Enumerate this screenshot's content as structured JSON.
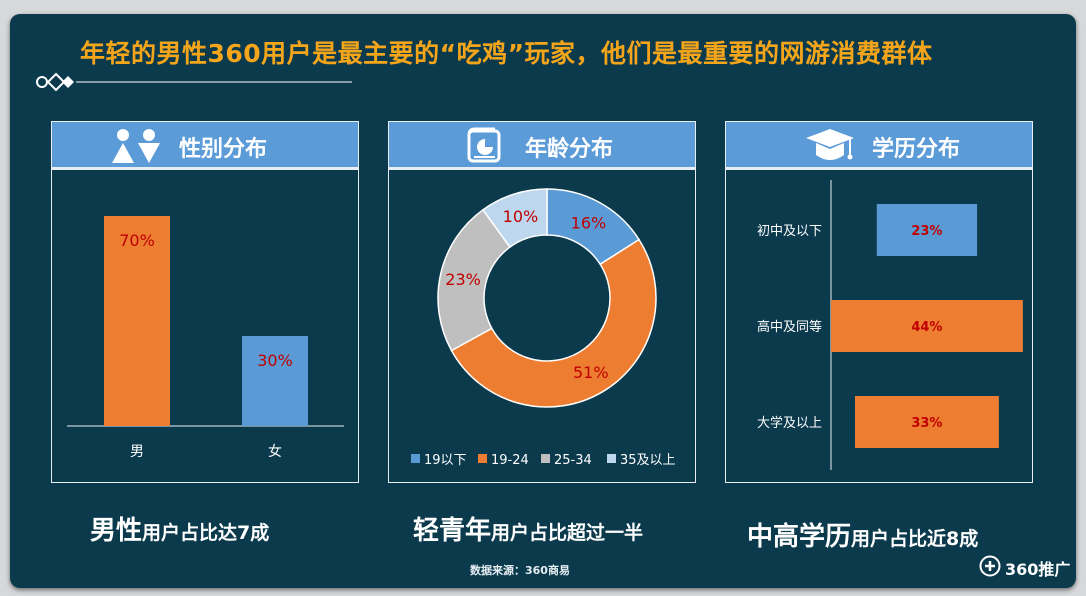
{
  "headline": "年轻的男性360用户是最主要的“吃鸡”玩家，他们是最重要的网游消费群体",
  "panels": {
    "gender": {
      "title": "性别分布",
      "icon": "male-female-icon"
    },
    "age": {
      "title": "年龄分布",
      "icon": "report-chart-icon"
    },
    "education": {
      "title": "学历分布",
      "icon": "graduation-cap-icon"
    }
  },
  "summaries": {
    "gender": {
      "big": "男性",
      "small": "用户占比达7成"
    },
    "age": {
      "big": "轻青年",
      "small": "用户占比超过一半"
    },
    "education": {
      "big": "中高学历",
      "small": "用户占比近8成"
    }
  },
  "source": "数据来源：360商易",
  "brand": {
    "text": "360推广",
    "icon": "plus-circle-icon"
  },
  "colors": {
    "background": "#0b3a4d",
    "header": "#5a9bd8",
    "orange": "#ed7d31",
    "blue": "#5b9bd5",
    "gray": "#bfbfbf",
    "lightblue": "#bdd7ee",
    "headline": "#f5a51a",
    "label_red": "#c00000"
  },
  "chart_data": [
    {
      "type": "bar",
      "title": "性别分布",
      "categories": [
        "男",
        "女"
      ],
      "values": [
        70,
        30
      ],
      "labels": [
        "70%",
        "30%"
      ],
      "colors": [
        "#ed7d31",
        "#5b9bd5"
      ],
      "ylim": [
        0,
        100
      ],
      "grid": false
    },
    {
      "type": "pie",
      "title": "年龄分布",
      "categories": [
        "19以下",
        "19-24",
        "25-34",
        "35及以上"
      ],
      "values": [
        16,
        51,
        23,
        10
      ],
      "labels": [
        "16%",
        "51%",
        "23%",
        "10%"
      ],
      "colors": [
        "#5b9bd5",
        "#ed7d31",
        "#bfbfbf",
        "#bdd7ee"
      ],
      "donut": true,
      "legend": "bottom"
    },
    {
      "type": "bar",
      "title": "学历分布",
      "orientation": "horizontal",
      "categories": [
        "初中及以下",
        "高中及同等",
        "大学及以上"
      ],
      "values": [
        23,
        44,
        33
      ],
      "labels": [
        "23%",
        "44%",
        "33%"
      ],
      "colors": [
        "#5b9bd5",
        "#ed7d31",
        "#ed7d31"
      ],
      "grid": false
    }
  ]
}
